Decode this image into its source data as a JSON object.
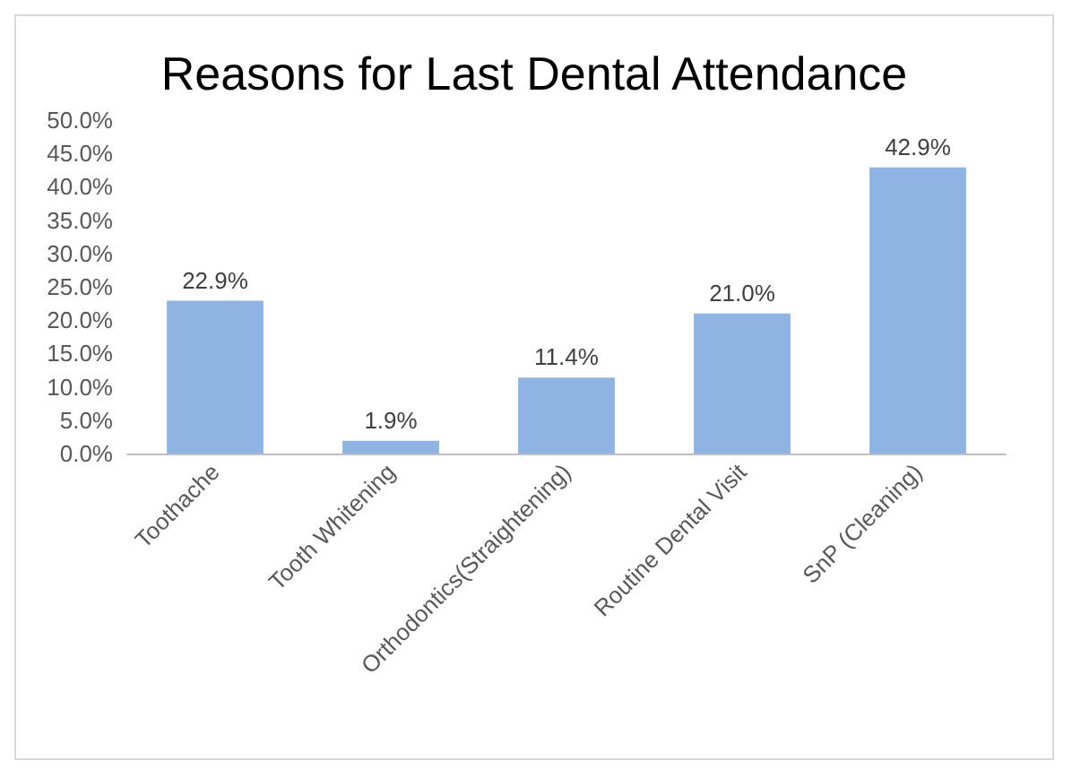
{
  "chart_data": {
    "type": "bar",
    "title": "Reasons for Last Dental Attendance",
    "categories": [
      "Toothache",
      "Tooth Whitening",
      "Orthodontics(Straightening)",
      "Routine Dental Visit",
      "SnP (Cleaning)"
    ],
    "values": [
      22.9,
      1.9,
      11.4,
      21.0,
      42.9
    ],
    "value_labels": [
      "22.9%",
      "1.9%",
      "11.4%",
      "21.0%",
      "42.9%"
    ],
    "color": "#8db4e2",
    "ylim": [
      0,
      50
    ],
    "yticks": [
      {
        "value": 0,
        "label": "0.0%"
      },
      {
        "value": 5,
        "label": "5.0%"
      },
      {
        "value": 10,
        "label": "10.0%"
      },
      {
        "value": 15,
        "label": "15.0%"
      },
      {
        "value": 20,
        "label": "20.0%"
      },
      {
        "value": 25,
        "label": "25.0%"
      },
      {
        "value": 30,
        "label": "30.0%"
      },
      {
        "value": 35,
        "label": "35.0%"
      },
      {
        "value": 40,
        "label": "40.0%"
      },
      {
        "value": 45,
        "label": "45.0%"
      },
      {
        "value": 50,
        "label": "50.0%"
      }
    ],
    "grid": false
  }
}
